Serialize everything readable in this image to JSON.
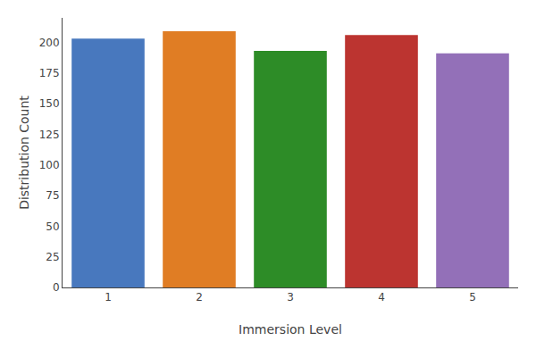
{
  "chart_data": {
    "type": "bar",
    "xlabel": "Immersion Level",
    "ylabel": "Distribution Count",
    "categories": [
      "1",
      "2",
      "3",
      "4",
      "5"
    ],
    "values": [
      203,
      209,
      193,
      206,
      191
    ],
    "colors": [
      "#4878be",
      "#e07d24",
      "#2d8c27",
      "#bc3430",
      "#9370b8"
    ],
    "ylim": [
      0,
      220
    ],
    "yticks": [
      0,
      25,
      50,
      75,
      100,
      125,
      150,
      175,
      200
    ],
    "grid": false
  }
}
